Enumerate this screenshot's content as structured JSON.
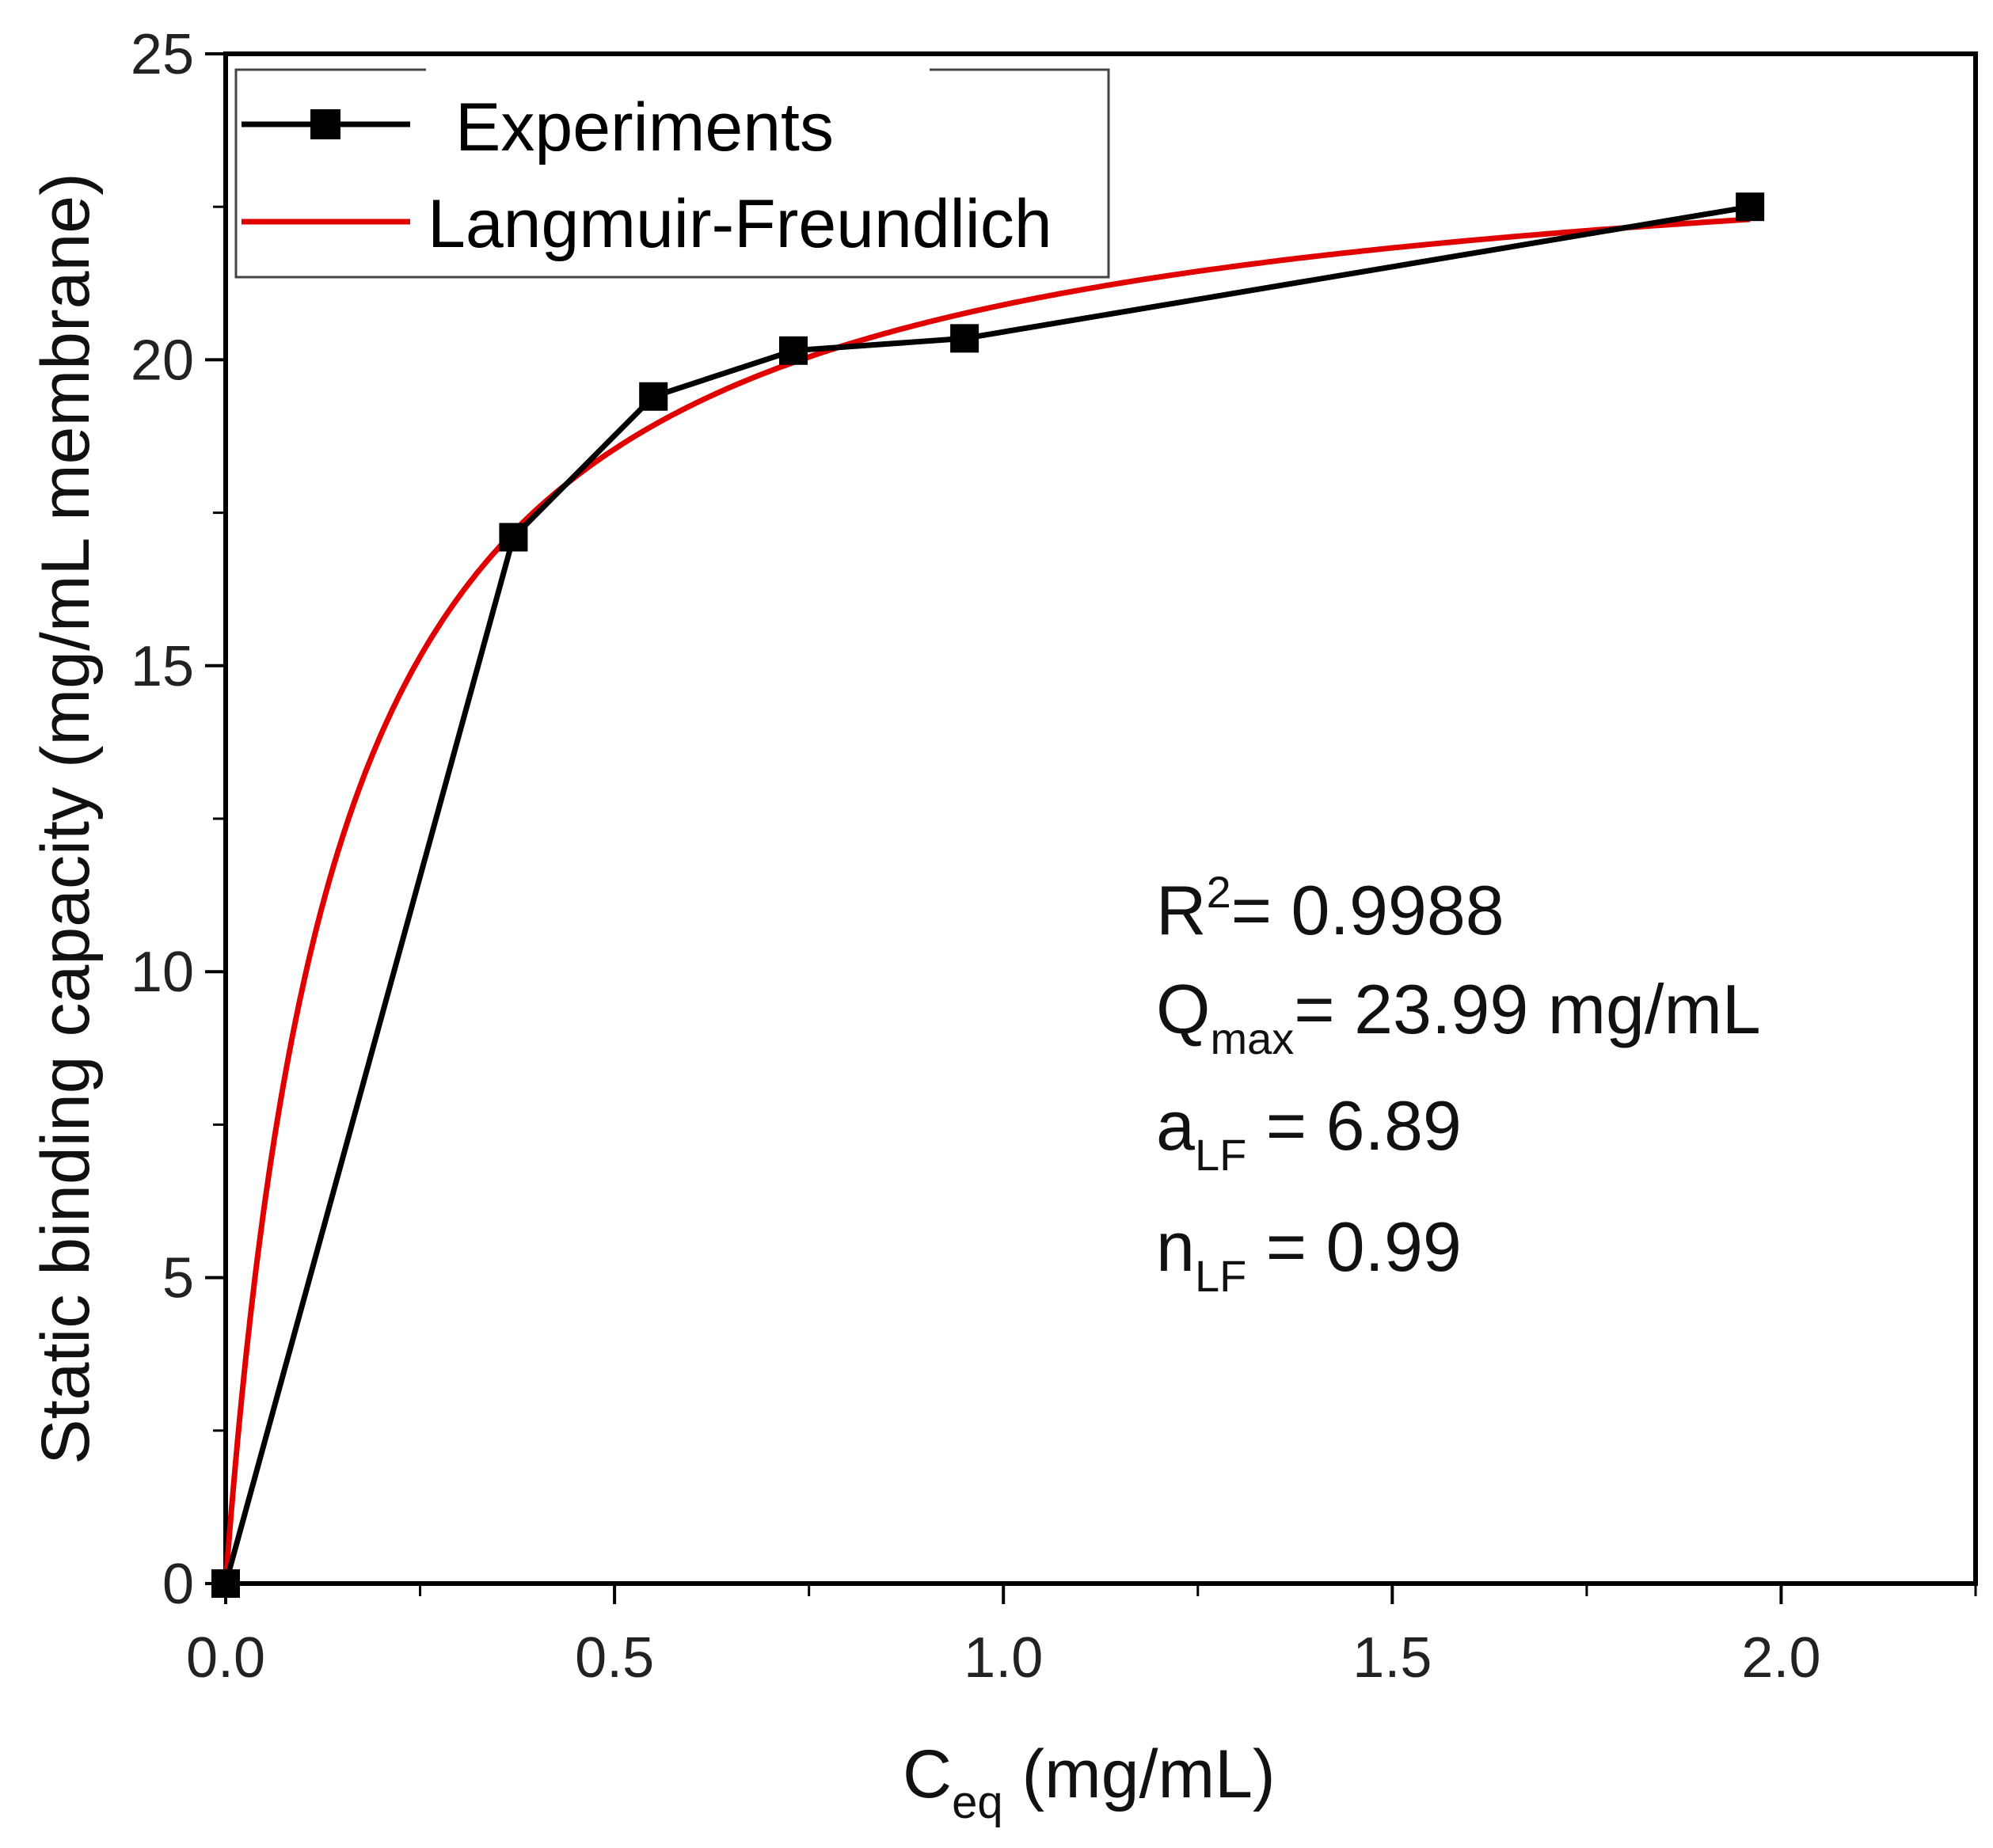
{
  "chart_data": {
    "type": "line",
    "title": "",
    "xlabel": {
      "main": "C",
      "sub": "eq",
      "rest": " (mg/mL)"
    },
    "ylabel": "Static binding capacity (mg/mL membrane)",
    "xlim": [
      0,
      2.25
    ],
    "ylim": [
      0,
      25
    ],
    "x_ticks": [
      0.0,
      0.5,
      1.0,
      1.5,
      2.0
    ],
    "x_tick_labels": [
      "0.0",
      "0.5",
      "1.0",
      "1.5",
      "2.0"
    ],
    "x_minor_ticks": [
      0.25,
      0.75,
      1.25,
      1.75,
      2.25
    ],
    "y_ticks": [
      0,
      5,
      10,
      15,
      20,
      25
    ],
    "y_tick_labels": [
      "0",
      "5",
      "10",
      "15",
      "20",
      "25"
    ],
    "y_minor_ticks": [
      2.5,
      7.5,
      12.5,
      17.5,
      22.5
    ],
    "grid": false,
    "legend_position": "top-left",
    "series": [
      {
        "name": "Experiments",
        "kind": "line+square-markers",
        "color": "#000000",
        "x": [
          0.0,
          0.37,
          0.55,
          0.73,
          0.95,
          1.96
        ],
        "y": [
          0.0,
          17.1,
          19.4,
          20.15,
          20.35,
          22.5
        ]
      },
      {
        "name": "Langmuir-Freundlich",
        "kind": "fit-curve",
        "color": "#e00000",
        "model": {
          "Qmax": 23.99,
          "a": 6.89,
          "n": 0.99
        },
        "x_range": [
          0.0,
          1.96
        ]
      }
    ],
    "annotations": [
      {
        "main": "R",
        "sup": "2",
        "rest": "= 0.9988"
      },
      {
        "main": "Q",
        "sub": "max",
        "rest": "= 23.99 mg/mL"
      },
      {
        "main": "a",
        "sub": "LF",
        "rest": " = 6.89"
      },
      {
        "main": "n",
        "sub": "LF",
        "rest": " = 0.99"
      }
    ]
  }
}
